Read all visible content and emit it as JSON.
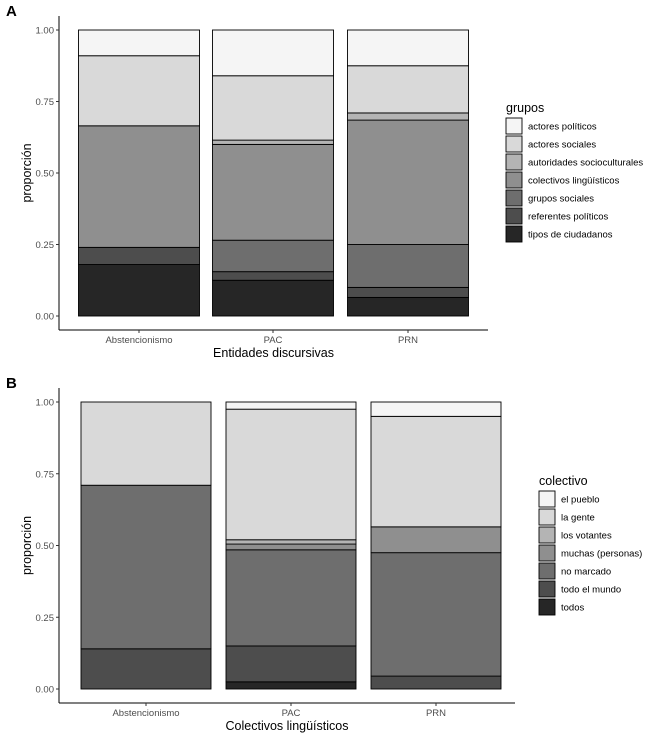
{
  "chart_data": [
    {
      "panel": "A",
      "type": "bar",
      "stacked": true,
      "categories": [
        "Abstencionismo",
        "PAC",
        "PRN"
      ],
      "xlabel": "Entidades discursivas",
      "ylabel": "proporción",
      "ylim": [
        0,
        1
      ],
      "yticks": [
        "0.00",
        "0.25",
        "0.50",
        "0.75",
        "1.00"
      ],
      "grid": false,
      "legend_title": "grupos",
      "legend_position": "right",
      "series": [
        {
          "name": "tipos de ciudadanos",
          "color": "#262626",
          "values": [
            0.18,
            0.125,
            0.065
          ]
        },
        {
          "name": "referentes políticos",
          "color": "#4d4d4d",
          "values": [
            0.06,
            0.03,
            0.035
          ]
        },
        {
          "name": "grupos sociales",
          "color": "#6e6e6e",
          "values": [
            0.0,
            0.11,
            0.15
          ]
        },
        {
          "name": "colectivos lingüísticos",
          "color": "#8f8f8f",
          "values": [
            0.425,
            0.335,
            0.435
          ]
        },
        {
          "name": "autoridades socioculturales",
          "color": "#b4b4b4",
          "values": [
            0.0,
            0.015,
            0.025
          ]
        },
        {
          "name": "actores sociales",
          "color": "#d9d9d9",
          "values": [
            0.245,
            0.225,
            0.165
          ]
        },
        {
          "name": "actores políticos",
          "color": "#f5f5f5",
          "values": [
            0.09,
            0.16,
            0.125
          ]
        }
      ]
    },
    {
      "panel": "B",
      "type": "bar",
      "stacked": true,
      "categories": [
        "Abstencionismo",
        "PAC",
        "PRN"
      ],
      "xlabel": "Colectivos lingüísticos",
      "ylabel": "proporción",
      "ylim": [
        0,
        1
      ],
      "yticks": [
        "0.00",
        "0.25",
        "0.50",
        "0.75",
        "1.00"
      ],
      "grid": false,
      "legend_title": "colectivo",
      "legend_position": "right",
      "series": [
        {
          "name": "todos",
          "color": "#262626",
          "values": [
            0.0,
            0.025,
            0.0
          ]
        },
        {
          "name": "todo el mundo",
          "color": "#4d4d4d",
          "values": [
            0.14,
            0.125,
            0.045
          ]
        },
        {
          "name": "no marcado",
          "color": "#6e6e6e",
          "values": [
            0.57,
            0.335,
            0.43
          ]
        },
        {
          "name": "muchas (personas)",
          "color": "#8f8f8f",
          "values": [
            0.0,
            0.02,
            0.09
          ]
        },
        {
          "name": "los votantes",
          "color": "#b4b4b4",
          "values": [
            0.0,
            0.015,
            0.0
          ]
        },
        {
          "name": "la gente",
          "color": "#d9d9d9",
          "values": [
            0.29,
            0.455,
            0.385
          ]
        },
        {
          "name": "el pueblo",
          "color": "#f5f5f5",
          "values": [
            0.0,
            0.025,
            0.05
          ]
        }
      ]
    }
  ]
}
